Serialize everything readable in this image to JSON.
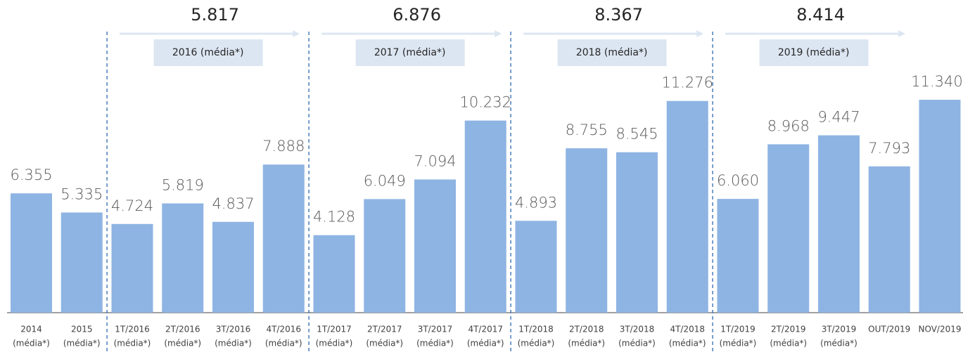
{
  "chart_data": {
    "type": "bar",
    "categories": [
      [
        "2014",
        "(média*)"
      ],
      [
        "2015",
        "(média*)"
      ],
      [
        "1T/2016",
        "(média*)"
      ],
      [
        "2T/2016",
        "(média*)"
      ],
      [
        "3T/2016",
        "(média*)"
      ],
      [
        "4T/2016",
        "(média*)"
      ],
      [
        "1T/2017",
        "(média*)"
      ],
      [
        "2T/2017",
        "(média*)"
      ],
      [
        "3T/2017",
        "(média*)"
      ],
      [
        "4T/2017",
        "(média*)"
      ],
      [
        "1T/2018",
        "(média*)"
      ],
      [
        "2T/2018",
        "(média*)"
      ],
      [
        "3T/2018",
        "(média*)"
      ],
      [
        "4T/2018",
        "(média*)"
      ],
      [
        "1T/2019",
        "(média*)"
      ],
      [
        "2T/2019",
        "(média*)"
      ],
      [
        "3T/2019",
        "(média*)"
      ],
      [
        "OUT/2019"
      ],
      [
        "NOV/2019"
      ]
    ],
    "values": [
      6355,
      5335,
      4724,
      5819,
      4837,
      7888,
      4128,
      6049,
      7094,
      10232,
      4893,
      8755,
      8545,
      11276,
      6060,
      8968,
      9447,
      7793,
      11340
    ],
    "value_labels": [
      "6.355",
      "5.335",
      "4.724",
      "5.819",
      "4.837",
      "7.888",
      "4.128",
      "6.049",
      "7.094",
      "10.232",
      "4.893",
      "8.755",
      "8.545",
      "11.276",
      "6.060",
      "8.968",
      "9.447",
      "7.793",
      "11.340"
    ],
    "color": "#8eb4e3",
    "groups": [
      {
        "title": "2016 (média*)",
        "value": 5817,
        "value_label": "5.817"
      },
      {
        "title": "2017 (média*)",
        "value": 6876,
        "value_label": "6.876"
      },
      {
        "title": "2018 (média*)",
        "value": 8367,
        "value_label": "8.367"
      },
      {
        "title": "2019 (média*)",
        "value": 8414,
        "value_label": "8.414"
      }
    ]
  }
}
